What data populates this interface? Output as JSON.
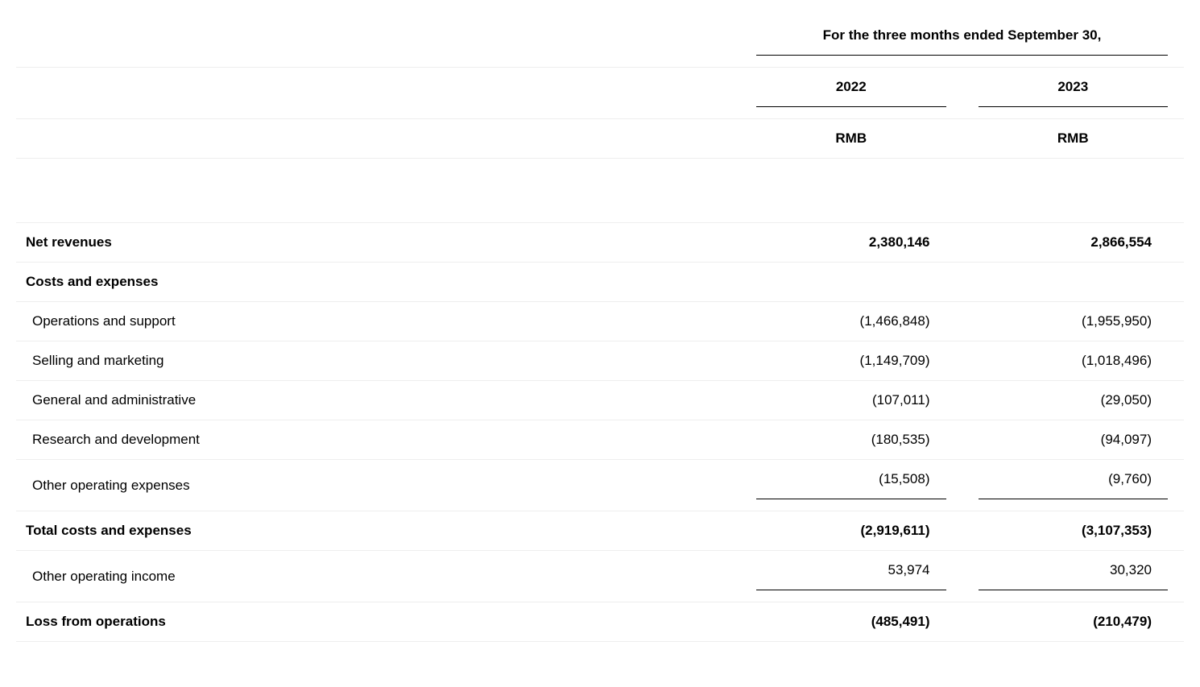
{
  "table": {
    "type": "financial-table",
    "background_color": "#ffffff",
    "row_border_color": "#eeeeee",
    "section_border_color": "#000000",
    "text_color": "#000000",
    "font_family": "Arial",
    "font_size_pt": 13,
    "period_header": "For the three months ended September 30,",
    "columns": [
      {
        "year": "2022",
        "currency": "RMB"
      },
      {
        "year": "2023",
        "currency": "RMB"
      }
    ],
    "rows": [
      {
        "key": "net_revenues",
        "label": "Net revenues",
        "values": [
          "2,380,146",
          "2,866,554"
        ],
        "bold": true,
        "indent": false
      },
      {
        "key": "costs_header",
        "label": "Costs and expenses",
        "values": [
          "",
          ""
        ],
        "bold": true,
        "indent": false
      },
      {
        "key": "ops_support",
        "label": "Operations and support",
        "values": [
          "(1,466,848)",
          "(1,955,950)"
        ],
        "bold": false,
        "indent": true
      },
      {
        "key": "selling_marketing",
        "label": "Selling and marketing",
        "values": [
          "(1,149,709)",
          "(1,018,496)"
        ],
        "bold": false,
        "indent": true
      },
      {
        "key": "general_admin",
        "label": "General and administrative",
        "values": [
          "(107,011)",
          "(29,050)"
        ],
        "bold": false,
        "indent": true
      },
      {
        "key": "r_and_d",
        "label": "Research and development",
        "values": [
          "(180,535)",
          "(94,097)"
        ],
        "bold": false,
        "indent": true
      },
      {
        "key": "other_op_exp",
        "label": "Other operating expenses",
        "values": [
          "(15,508)",
          "(9,760)"
        ],
        "bold": false,
        "indent": true
      },
      {
        "key": "total_costs",
        "label": "Total costs and expenses",
        "values": [
          "(2,919,611)",
          "(3,107,353)"
        ],
        "bold": true,
        "indent": false,
        "top_rule": true
      },
      {
        "key": "other_op_income",
        "label": "Other operating income",
        "values": [
          "53,974",
          "30,320"
        ],
        "bold": false,
        "indent": true
      },
      {
        "key": "loss_from_ops",
        "label": "Loss from operations",
        "values": [
          "(485,491)",
          "(210,479)"
        ],
        "bold": true,
        "indent": false,
        "top_rule": true,
        "bottom_rule": true
      }
    ]
  }
}
